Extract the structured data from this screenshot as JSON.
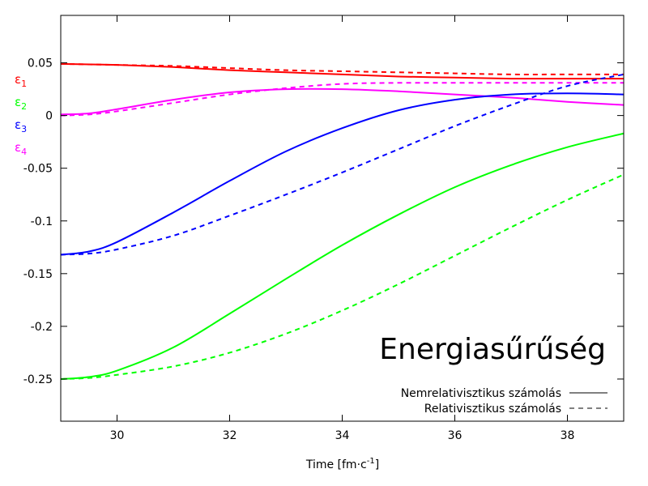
{
  "chart_data": {
    "type": "line",
    "title": "Energiasűrűség",
    "xlabel": "Time [fm·c⁻¹]",
    "xlabel_parts": {
      "base": "Time [fm·c",
      "sup": "-1",
      "end": "]"
    },
    "ylabel": "",
    "xlim": [
      29,
      39
    ],
    "ylim": [
      -0.29,
      0.095
    ],
    "xticks": [
      30,
      32,
      34,
      36,
      38
    ],
    "xtick_labels": [
      "30",
      "32",
      "34",
      "36",
      "38"
    ],
    "yticks": [
      0.05,
      0,
      -0.05,
      -0.1,
      -0.15,
      -0.2,
      -0.25
    ],
    "ytick_labels": [
      "0.05",
      "0",
      "-0.05",
      "-0.1",
      "-0.15",
      "-0.2",
      "-0.25"
    ],
    "grid": false,
    "legend_position": "bottom-right",
    "line_styles": [
      {
        "label": "Nemrelativisztikus számolás",
        "dash": "solid"
      },
      {
        "label": "Relativisztikus számolás",
        "dash": "dashed"
      }
    ],
    "series_labels": [
      {
        "sym": "ε",
        "sub": "1",
        "color": "#ff0000"
      },
      {
        "sym": "ε",
        "sub": "2",
        "color": "#00ff00"
      },
      {
        "sym": "ε",
        "sub": "3",
        "color": "#0000ff"
      },
      {
        "sym": "ε",
        "sub": "4",
        "color": "#ff00ff"
      }
    ],
    "series": [
      {
        "key": "eps1_nonrel",
        "color": "#ff0000",
        "dash": "solid",
        "x": [
          29,
          30,
          31,
          32,
          33,
          34,
          35,
          36,
          37,
          38,
          39
        ],
        "y": [
          0.049,
          0.048,
          0.046,
          0.043,
          0.041,
          0.039,
          0.037,
          0.036,
          0.035,
          0.035,
          0.035
        ]
      },
      {
        "key": "eps1_rel",
        "color": "#ff0000",
        "dash": "dashed",
        "x": [
          29,
          30,
          31,
          32,
          33,
          34,
          35,
          36,
          37,
          38,
          39
        ],
        "y": [
          0.049,
          0.048,
          0.047,
          0.045,
          0.043,
          0.042,
          0.041,
          0.04,
          0.039,
          0.039,
          0.039
        ]
      },
      {
        "key": "eps4_nonrel",
        "color": "#ff00ff",
        "dash": "solid",
        "x": [
          29,
          29.5,
          30,
          31,
          32,
          33,
          34,
          35,
          36,
          37,
          38,
          39
        ],
        "y": [
          0.001,
          0.002,
          0.006,
          0.015,
          0.022,
          0.025,
          0.025,
          0.023,
          0.02,
          0.017,
          0.013,
          0.01
        ]
      },
      {
        "key": "eps4_rel",
        "color": "#ff00ff",
        "dash": "dashed",
        "x": [
          29,
          29.5,
          30,
          31,
          32,
          33,
          34,
          35,
          36,
          37,
          38,
          39
        ],
        "y": [
          0.0,
          0.001,
          0.004,
          0.012,
          0.02,
          0.026,
          0.03,
          0.031,
          0.031,
          0.031,
          0.031,
          0.031
        ]
      },
      {
        "key": "eps3_nonrel",
        "color": "#0000ff",
        "dash": "solid",
        "x": [
          29,
          29.5,
          30,
          31,
          32,
          33,
          34,
          35,
          36,
          37,
          38,
          39
        ],
        "y": [
          -0.132,
          -0.129,
          -0.12,
          -0.092,
          -0.062,
          -0.034,
          -0.012,
          0.005,
          0.015,
          0.02,
          0.021,
          0.02
        ]
      },
      {
        "key": "eps3_rel",
        "color": "#0000ff",
        "dash": "dashed",
        "x": [
          29,
          29.5,
          30,
          31,
          32,
          33,
          34,
          35,
          36,
          37,
          38,
          39
        ],
        "y": [
          -0.132,
          -0.131,
          -0.127,
          -0.114,
          -0.095,
          -0.075,
          -0.054,
          -0.032,
          -0.01,
          0.01,
          0.028,
          0.039
        ]
      },
      {
        "key": "eps2_nonrel",
        "color": "#00ff00",
        "dash": "solid",
        "x": [
          29,
          29.5,
          30,
          31,
          32,
          33,
          34,
          35,
          36,
          37,
          38,
          39
        ],
        "y": [
          -0.25,
          -0.248,
          -0.242,
          -0.22,
          -0.188,
          -0.155,
          -0.123,
          -0.094,
          -0.068,
          -0.047,
          -0.03,
          -0.017
        ]
      },
      {
        "key": "eps2_rel",
        "color": "#00ff00",
        "dash": "dashed",
        "x": [
          29,
          29.5,
          30,
          31,
          32,
          33,
          34,
          35,
          36,
          37,
          38,
          39
        ],
        "y": [
          -0.25,
          -0.249,
          -0.246,
          -0.238,
          -0.225,
          -0.207,
          -0.185,
          -0.16,
          -0.133,
          -0.106,
          -0.08,
          -0.056
        ]
      }
    ]
  }
}
